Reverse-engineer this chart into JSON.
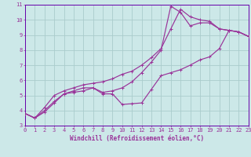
{
  "xlabel": "Windchill (Refroidissement éolien,°C)",
  "bg_color": "#cce8e8",
  "grid_color": "#aacccc",
  "line_color": "#993399",
  "spine_color": "#6600aa",
  "xlim": [
    0,
    23
  ],
  "ylim": [
    3,
    11
  ],
  "xticks": [
    0,
    1,
    2,
    3,
    4,
    5,
    6,
    7,
    8,
    9,
    10,
    11,
    12,
    13,
    14,
    15,
    16,
    17,
    18,
    19,
    20,
    21,
    22,
    23
  ],
  "yticks": [
    3,
    4,
    5,
    6,
    7,
    8,
    9,
    10,
    11
  ],
  "curve1_x": [
    0,
    1,
    2,
    3,
    4,
    5,
    6,
    7,
    8,
    9,
    10,
    11,
    12,
    13,
    14,
    15,
    16,
    17,
    18,
    19,
    20,
    21,
    22,
    23
  ],
  "curve1_y": [
    3.8,
    3.5,
    3.9,
    4.5,
    5.1,
    5.2,
    5.3,
    5.5,
    5.1,
    5.1,
    4.4,
    4.45,
    4.5,
    5.4,
    6.3,
    6.5,
    6.7,
    7.0,
    7.35,
    7.55,
    8.1,
    9.3,
    9.2,
    8.9
  ],
  "curve2_x": [
    0,
    1,
    2,
    3,
    4,
    5,
    6,
    7,
    8,
    9,
    10,
    11,
    12,
    13,
    14,
    15,
    16,
    17,
    18,
    19,
    20,
    21,
    22,
    23
  ],
  "curve2_y": [
    3.8,
    3.5,
    4.2,
    5.0,
    5.3,
    5.5,
    5.7,
    5.8,
    5.9,
    6.1,
    6.4,
    6.6,
    7.0,
    7.5,
    8.1,
    9.4,
    10.7,
    10.2,
    10.0,
    9.9,
    9.4,
    9.3,
    9.2,
    8.9
  ],
  "curve3_x": [
    0,
    1,
    2,
    3,
    4,
    5,
    6,
    7,
    8,
    9,
    10,
    11,
    12,
    13,
    14,
    15,
    16,
    17,
    18,
    19,
    20,
    21,
    22,
    23
  ],
  "curve3_y": [
    3.8,
    3.5,
    4.0,
    4.6,
    5.1,
    5.3,
    5.5,
    5.5,
    5.2,
    5.3,
    5.5,
    5.9,
    6.5,
    7.2,
    8.0,
    10.9,
    10.5,
    9.6,
    9.8,
    9.8,
    9.4,
    9.3,
    9.2,
    8.9
  ],
  "tick_fontsize": 5,
  "xlabel_fontsize": 5.5,
  "tick_color": "#993399",
  "xlabel_color": "#993399"
}
